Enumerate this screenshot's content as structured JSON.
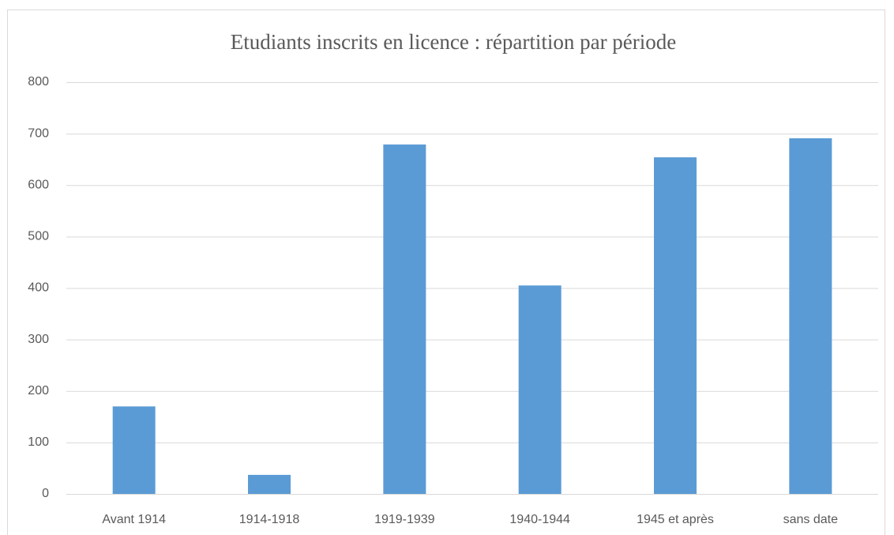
{
  "chart_data": {
    "type": "bar",
    "title": "Etudiants inscrits en licence : répartition par période",
    "categories": [
      "Avant 1914",
      "1914-1918",
      "1919-1939",
      "1940-1944",
      "1945 et après",
      "sans date"
    ],
    "values": [
      170,
      37,
      679,
      405,
      654,
      691
    ],
    "color": "#5b9bd5",
    "ylim": [
      0,
      800
    ],
    "yticks": [
      0,
      100,
      200,
      300,
      400,
      500,
      600,
      700,
      800
    ],
    "grid": true
  }
}
